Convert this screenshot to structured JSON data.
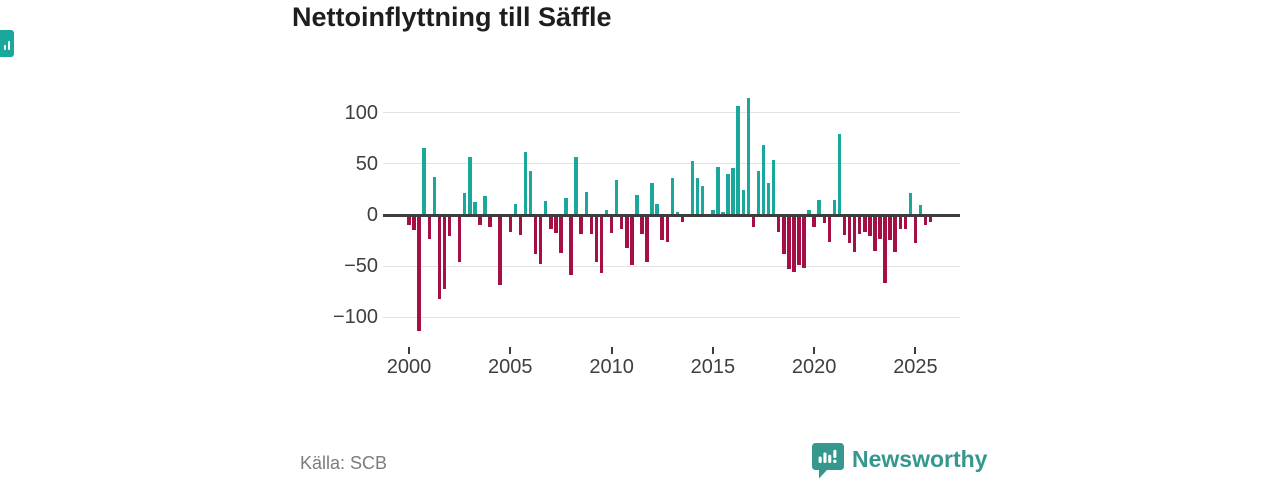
{
  "header": {
    "title": "Nettoinflyttning till Säffle"
  },
  "footer": {
    "source": "Källa: SCB",
    "brand": "Newsworthy"
  },
  "colors": {
    "positive": "#1aa89d",
    "negative": "#a50f45",
    "grid": "#e3e3e3",
    "axis": "#3d3d3d",
    "tick_text": "#3f3f3f",
    "brand_teal": "#35978e",
    "badge_teal": "#1aa89d"
  },
  "chart_data": {
    "type": "bar",
    "title": "Nettoinflyttning till Säffle",
    "xlabel": "",
    "ylabel": "",
    "cadence": "quarterly",
    "start": "2000-Q1",
    "end": "2025-Q4",
    "ylim": [
      -125,
      125
    ],
    "grid": true,
    "legend": "none",
    "positive_color": "#1aa89d",
    "negative_color": "#a50f45",
    "yticks": [
      {
        "v": 100,
        "label": "100"
      },
      {
        "v": 50,
        "label": "50"
      },
      {
        "v": 0,
        "label": "0"
      },
      {
        "v": -50,
        "label": "−50"
      },
      {
        "v": -100,
        "label": "−100"
      }
    ],
    "xticks": [
      "2000",
      "2005",
      "2010",
      "2015",
      "2020",
      "2025"
    ],
    "values": [
      -8,
      -13,
      -112,
      65,
      -22,
      37,
      -81,
      -71,
      -19,
      0,
      -44,
      21,
      57,
      13,
      -8,
      19,
      -10,
      0,
      -67,
      0,
      -15,
      11,
      -18,
      62,
      43,
      -37,
      -46,
      14,
      -12,
      -16,
      -36,
      17,
      -57,
      57,
      -17,
      22,
      -17,
      -44,
      -55,
      5,
      -16,
      34,
      -12,
      -31,
      -47,
      20,
      -17,
      -44,
      31,
      11,
      -23,
      -25,
      36,
      3,
      -5,
      0,
      53,
      36,
      28,
      0,
      5,
      47,
      3,
      40,
      46,
      106,
      24,
      114,
      -10,
      43,
      68,
      31,
      54,
      -15,
      -37,
      -51,
      -54,
      -47,
      -50,
      5,
      -10,
      15,
      -6,
      -25,
      15,
      79,
      -18,
      -26,
      -35,
      -17,
      -15,
      -19,
      -34,
      -22,
      -65,
      -23,
      -35,
      -12,
      -12,
      21,
      -26,
      10,
      -8,
      -5
    ]
  }
}
